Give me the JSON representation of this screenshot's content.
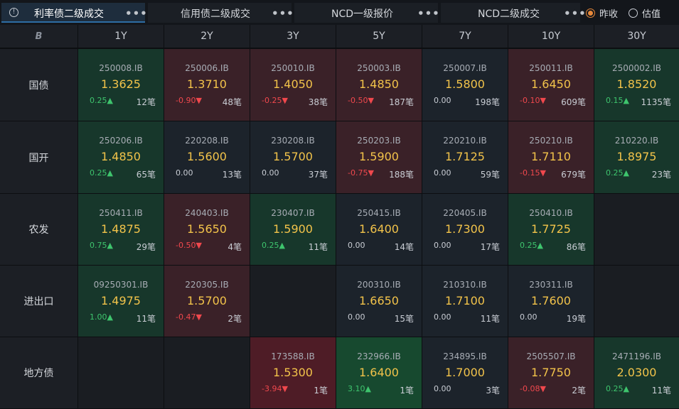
{
  "tabs": [
    {
      "label": "利率债二级成交",
      "active": true
    },
    {
      "label": "信用债二级成交",
      "active": false
    },
    {
      "label": "NCD一级报价",
      "active": false
    },
    {
      "label": "NCD二级成交",
      "active": false
    }
  ],
  "more_glyph": "•••",
  "info_glyph": "!",
  "price_mode": {
    "options": [
      {
        "label": "昨收",
        "selected": true
      },
      {
        "label": "估值",
        "selected": false
      }
    ]
  },
  "corner_glyph": "B",
  "columns": [
    "1Y",
    "2Y",
    "3Y",
    "5Y",
    "7Y",
    "10Y",
    "30Y"
  ],
  "rows": [
    {
      "label": "国债",
      "cells": [
        {
          "code": "250008.IB",
          "yield": "1.3625",
          "change": "0.25▲",
          "dir": "up",
          "count": "12笔",
          "tone": "green"
        },
        {
          "code": "250006.IB",
          "yield": "1.3710",
          "change": "-0.90▼",
          "dir": "down",
          "count": "48笔",
          "tone": "red"
        },
        {
          "code": "250010.IB",
          "yield": "1.4050",
          "change": "-0.25▼",
          "dir": "down",
          "count": "38笔",
          "tone": "red"
        },
        {
          "code": "250003.IB",
          "yield": "1.4850",
          "change": "-0.50▼",
          "dir": "down",
          "count": "187笔",
          "tone": "red"
        },
        {
          "code": "250007.IB",
          "yield": "1.5800",
          "change": "0.00",
          "dir": "flat",
          "count": "198笔",
          "tone": "neutral"
        },
        {
          "code": "250011.IB",
          "yield": "1.6450",
          "change": "-0.10▼",
          "dir": "down",
          "count": "609笔",
          "tone": "red"
        },
        {
          "code": "2500002.IB",
          "yield": "1.8520",
          "change": "0.15▲",
          "dir": "up",
          "count": "1135笔",
          "tone": "green"
        }
      ]
    },
    {
      "label": "国开",
      "cells": [
        {
          "code": "250206.IB",
          "yield": "1.4850",
          "change": "0.25▲",
          "dir": "up",
          "count": "65笔",
          "tone": "green"
        },
        {
          "code": "220208.IB",
          "yield": "1.5600",
          "change": "0.00",
          "dir": "flat",
          "count": "13笔",
          "tone": "neutral"
        },
        {
          "code": "230208.IB",
          "yield": "1.5700",
          "change": "0.00",
          "dir": "flat",
          "count": "37笔",
          "tone": "neutral"
        },
        {
          "code": "250203.IB",
          "yield": "1.5900",
          "change": "-0.75▼",
          "dir": "down",
          "count": "188笔",
          "tone": "red"
        },
        {
          "code": "220210.IB",
          "yield": "1.7125",
          "change": "0.00",
          "dir": "flat",
          "count": "59笔",
          "tone": "neutral"
        },
        {
          "code": "250210.IB",
          "yield": "1.7110",
          "change": "-0.15▼",
          "dir": "down",
          "count": "679笔",
          "tone": "red"
        },
        {
          "code": "210220.IB",
          "yield": "1.8975",
          "change": "0.25▲",
          "dir": "up",
          "count": "23笔",
          "tone": "green"
        }
      ]
    },
    {
      "label": "农发",
      "cells": [
        {
          "code": "250411.IB",
          "yield": "1.4875",
          "change": "0.75▲",
          "dir": "up",
          "count": "29笔",
          "tone": "green"
        },
        {
          "code": "240403.IB",
          "yield": "1.5650",
          "change": "-0.50▼",
          "dir": "down",
          "count": "4笔",
          "tone": "red"
        },
        {
          "code": "230407.IB",
          "yield": "1.5900",
          "change": "0.25▲",
          "dir": "up",
          "count": "11笔",
          "tone": "green"
        },
        {
          "code": "250415.IB",
          "yield": "1.6400",
          "change": "0.00",
          "dir": "flat",
          "count": "14笔",
          "tone": "neutral"
        },
        {
          "code": "220405.IB",
          "yield": "1.7300",
          "change": "0.00",
          "dir": "flat",
          "count": "17笔",
          "tone": "neutral"
        },
        {
          "code": "250410.IB",
          "yield": "1.7725",
          "change": "0.25▲",
          "dir": "up",
          "count": "86笔",
          "tone": "green"
        },
        null
      ]
    },
    {
      "label": "进出口",
      "cells": [
        {
          "code": "09250301.IB",
          "yield": "1.4975",
          "change": "1.00▲",
          "dir": "up",
          "count": "11笔",
          "tone": "green"
        },
        {
          "code": "220305.IB",
          "yield": "1.5700",
          "change": "-0.47▼",
          "dir": "down",
          "count": "2笔",
          "tone": "red"
        },
        null,
        {
          "code": "200310.IB",
          "yield": "1.6650",
          "change": "0.00",
          "dir": "flat",
          "count": "15笔",
          "tone": "neutral"
        },
        {
          "code": "210310.IB",
          "yield": "1.7100",
          "change": "0.00",
          "dir": "flat",
          "count": "11笔",
          "tone": "neutral"
        },
        {
          "code": "230311.IB",
          "yield": "1.7600",
          "change": "0.00",
          "dir": "flat",
          "count": "19笔",
          "tone": "neutral"
        },
        null
      ]
    },
    {
      "label": "地方债",
      "cells": [
        null,
        null,
        {
          "code": "173588.IB",
          "yield": "1.5300",
          "change": "-3.94▼",
          "dir": "down",
          "count": "1笔",
          "tone": "red-strong"
        },
        {
          "code": "232966.IB",
          "yield": "1.6400",
          "change": "3.10▲",
          "dir": "up",
          "count": "1笔",
          "tone": "green-strong"
        },
        {
          "code": "234895.IB",
          "yield": "1.7000",
          "change": "0.00",
          "dir": "flat",
          "count": "3笔",
          "tone": "neutral"
        },
        {
          "code": "2505507.IB",
          "yield": "1.7750",
          "change": "-0.08▼",
          "dir": "down",
          "count": "2笔",
          "tone": "red"
        },
        {
          "code": "2471196.IB",
          "yield": "2.0300",
          "change": "0.25▲",
          "dir": "up",
          "count": "11笔",
          "tone": "green"
        }
      ]
    }
  ]
}
